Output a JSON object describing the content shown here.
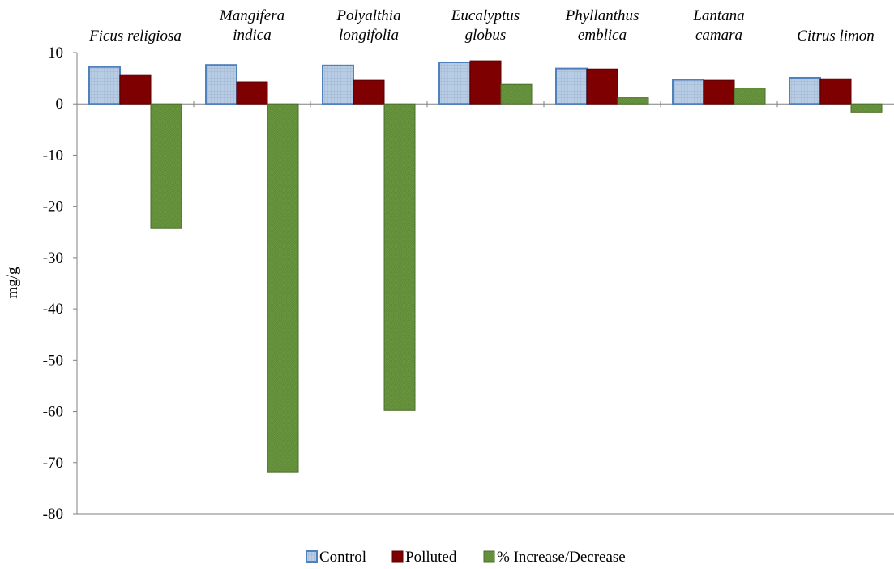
{
  "chart_data": {
    "type": "bar",
    "categories": [
      [
        "Ficus religiosa"
      ],
      [
        "Mangifera",
        "indica"
      ],
      [
        "Polyalthia",
        "longifolia"
      ],
      [
        "Eucalyptus",
        "globus"
      ],
      [
        "Phyllanthus",
        "emblica"
      ],
      [
        "Lantana",
        "camara"
      ],
      [
        "Citrus limon"
      ]
    ],
    "series": [
      {
        "name": "Control",
        "values": [
          7.2,
          7.6,
          7.5,
          8.1,
          6.9,
          4.7,
          5.1
        ],
        "color": "#b8cce4",
        "edge": "#4f81bd"
      },
      {
        "name": "Polluted",
        "values": [
          5.7,
          4.3,
          4.6,
          8.4,
          6.8,
          4.6,
          4.9
        ],
        "color": "#7f0000",
        "edge": "#5a0000"
      },
      {
        "name": "% Increase/Decrease",
        "values": [
          -24.2,
          -71.8,
          -59.8,
          3.8,
          1.2,
          3.1,
          -1.6
        ],
        "color": "#5f8a36",
        "edge": "#4a6d2a"
      }
    ],
    "ylabel": "mg/g",
    "ylim": [
      -80,
      10
    ],
    "yticks": [
      "10",
      "0",
      "-10",
      "-20",
      "-30",
      "-40",
      "-50",
      "-60",
      "-70",
      "-80"
    ],
    "legend_position": "bottom",
    "grid": false
  }
}
